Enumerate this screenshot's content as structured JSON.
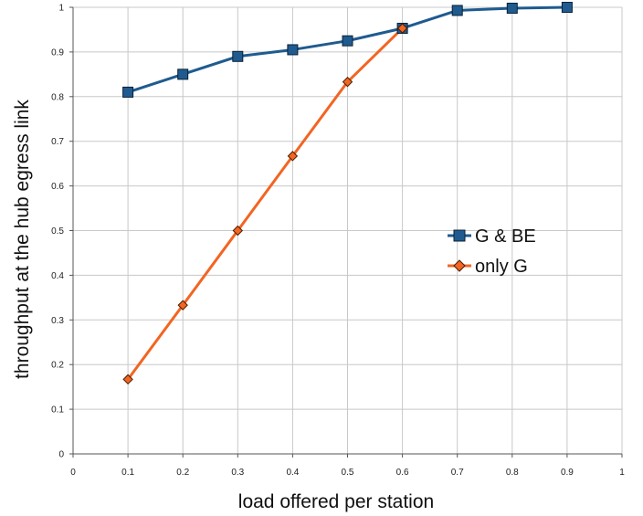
{
  "chart_data": {
    "type": "line",
    "xlabel": "load offered per station",
    "ylabel": "throughput at the hub egress link",
    "xlim": [
      0,
      1
    ],
    "ylim": [
      0,
      1
    ],
    "xticks": [
      "0",
      "0.1",
      "0.2",
      "0.3",
      "0.4",
      "0.5",
      "0.6",
      "0.7",
      "0.8",
      "0.9",
      "1"
    ],
    "yticks": [
      "0",
      "0.1",
      "0.2",
      "0.3",
      "0.4",
      "0.5",
      "0.6",
      "0.7",
      "0.8",
      "0.9",
      "1"
    ],
    "grid": true,
    "legend_position": "right",
    "x": [
      0.1,
      0.2,
      0.3,
      0.4,
      0.5,
      0.6,
      0.7,
      0.8,
      0.9
    ],
    "series": [
      {
        "name": "G & BE",
        "color": "#1f5b8f",
        "marker": "square",
        "values": [
          0.81,
          0.85,
          0.89,
          0.905,
          0.925,
          0.953,
          0.993,
          0.998,
          1.0
        ]
      },
      {
        "name": "only G",
        "color": "#f26522",
        "marker": "diamond",
        "values": [
          0.167,
          0.333,
          0.5,
          0.667,
          0.833,
          0.953,
          null,
          null,
          null
        ]
      }
    ]
  }
}
